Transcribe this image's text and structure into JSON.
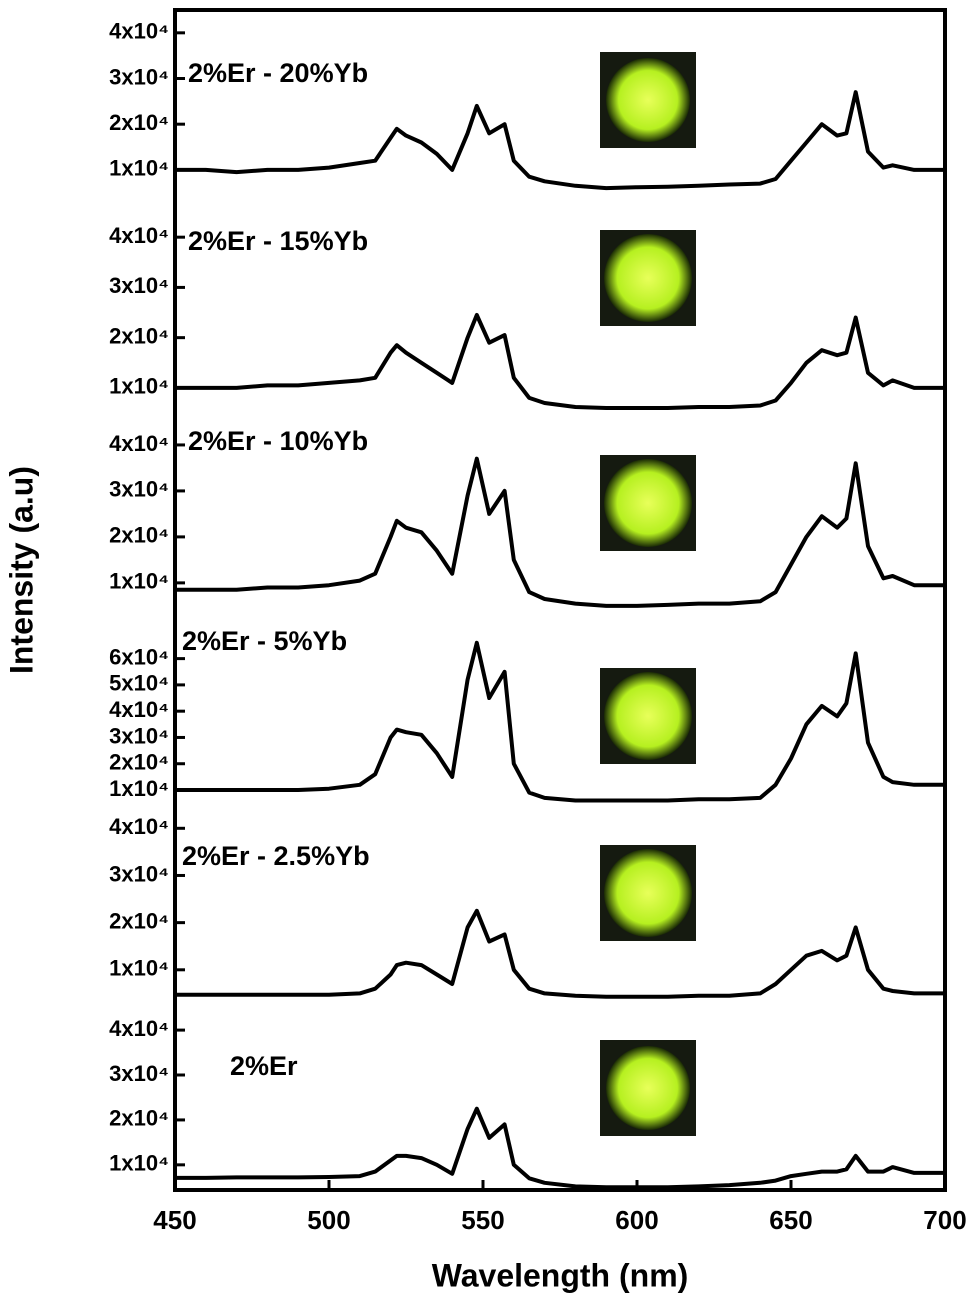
{
  "chart_data": {
    "type": "line",
    "xlabel": "Wavelength (nm)",
    "ylabel": "Intensity (a.u)",
    "color": "#000000",
    "xlim": [
      450,
      700
    ],
    "xticks": [
      450,
      500,
      550,
      600,
      650,
      700
    ],
    "x": [
      450,
      460,
      470,
      480,
      490,
      500,
      510,
      515,
      520,
      522,
      525,
      530,
      535,
      540,
      545,
      548,
      552,
      557,
      560,
      565,
      570,
      580,
      590,
      600,
      610,
      620,
      630,
      640,
      645,
      650,
      655,
      660,
      665,
      668,
      671,
      675,
      680,
      683,
      690,
      700
    ],
    "panels": [
      {
        "label": "2%Er - 20%Yb",
        "ylim": [
          3400,
          45000
        ],
        "yticks": [
          {
            "value": 10000,
            "label": "1x10⁴"
          },
          {
            "value": 20000,
            "label": "2x10⁴"
          },
          {
            "value": 30000,
            "label": "3x10⁴"
          },
          {
            "value": 40000,
            "label": "4x10⁴"
          }
        ],
        "values": [
          10000,
          10000,
          9500,
          10000,
          10000,
          10500,
          11500,
          12000,
          17000,
          19000,
          17500,
          16000,
          13500,
          10000,
          18000,
          24000,
          18000,
          20000,
          12000,
          8500,
          7500,
          6500,
          6000,
          6200,
          6300,
          6500,
          6800,
          7000,
          8000,
          12000,
          16000,
          20000,
          17500,
          18000,
          27000,
          14000,
          10500,
          11000,
          10000,
          10000
        ]
      },
      {
        "label": "2%Er - 15%Yb",
        "ylim": [
          5600,
          47400
        ],
        "yticks": [
          {
            "value": 10000,
            "label": "1x10⁴"
          },
          {
            "value": 20000,
            "label": "2x10⁴"
          },
          {
            "value": 30000,
            "label": "3x10⁴"
          },
          {
            "value": 40000,
            "label": "4x10⁴"
          }
        ],
        "values": [
          10000,
          10000,
          10000,
          10500,
          10500,
          11000,
          11500,
          12000,
          17000,
          18500,
          17000,
          15000,
          13000,
          11000,
          20000,
          24500,
          19000,
          20500,
          12000,
          8000,
          7000,
          6200,
          6000,
          6000,
          6000,
          6200,
          6200,
          6500,
          7500,
          11000,
          15000,
          17500,
          16500,
          17000,
          24000,
          13000,
          10500,
          11500,
          10000,
          10000
        ]
      },
      {
        "label": "2%Er - 10%Yb",
        "ylim": [
          4100,
          47600
        ],
        "yticks": [
          {
            "value": 10000,
            "label": "1x10⁴"
          },
          {
            "value": 20000,
            "label": "2x10⁴"
          },
          {
            "value": 30000,
            "label": "3x10⁴"
          },
          {
            "value": 40000,
            "label": "4x10⁴"
          }
        ],
        "values": [
          8500,
          8500,
          8500,
          9000,
          9000,
          9500,
          10500,
          12000,
          20000,
          23500,
          22000,
          21000,
          17000,
          12000,
          29000,
          37000,
          25000,
          30000,
          15000,
          8000,
          6500,
          5500,
          5000,
          5000,
          5200,
          5500,
          5500,
          6000,
          8000,
          14000,
          20000,
          24500,
          22000,
          24000,
          36000,
          18000,
          11000,
          11500,
          9500,
          9500
        ]
      },
      {
        "label": "2%Er - 5%Yb",
        "ylim": [
          6200,
          78500
        ],
        "yticks": [
          {
            "value": 10000,
            "label": "1x10⁴"
          },
          {
            "value": 20000,
            "label": "2x10⁴"
          },
          {
            "value": 30000,
            "label": "3x10⁴"
          },
          {
            "value": 40000,
            "label": "4x10⁴"
          },
          {
            "value": 50000,
            "label": "5x10⁴"
          },
          {
            "value": 60000,
            "label": "6x10⁴"
          }
        ],
        "values": [
          10000,
          10000,
          10000,
          10000,
          10000,
          10500,
          12000,
          16000,
          30000,
          33000,
          32000,
          31000,
          24000,
          15000,
          52000,
          66000,
          45000,
          55000,
          20000,
          9000,
          7000,
          6000,
          6000,
          6000,
          6000,
          6500,
          6500,
          7000,
          12000,
          22000,
          35000,
          42000,
          38000,
          43000,
          62000,
          28000,
          15000,
          13000,
          12000,
          12000
        ]
      },
      {
        "label": "2%Er - 2.5%Yb",
        "ylim": [
          3600,
          46000
        ],
        "yticks": [
          {
            "value": 10000,
            "label": "1x10⁴"
          },
          {
            "value": 20000,
            "label": "2x10⁴"
          },
          {
            "value": 30000,
            "label": "3x10⁴"
          },
          {
            "value": 40000,
            "label": "4x10⁴"
          }
        ],
        "values": [
          4700,
          4700,
          4700,
          4700,
          4700,
          4700,
          5000,
          6000,
          9000,
          11000,
          11500,
          11000,
          9000,
          7000,
          19000,
          22500,
          16000,
          17500,
          10000,
          6000,
          5000,
          4500,
          4300,
          4300,
          4300,
          4500,
          4500,
          5000,
          7000,
          10000,
          13000,
          14000,
          12000,
          13000,
          19000,
          10000,
          6000,
          5500,
          5000,
          5000
        ]
      },
      {
        "label": "2%Er",
        "ylim": [
          4400,
          46700
        ],
        "yticks": [
          {
            "value": 10000,
            "label": "1x10⁴"
          },
          {
            "value": 20000,
            "label": "2x10⁴"
          },
          {
            "value": 30000,
            "label": "3x10⁴"
          },
          {
            "value": 40000,
            "label": "4x10⁴"
          }
        ],
        "values": [
          7100,
          7100,
          7200,
          7200,
          7200,
          7300,
          7500,
          8500,
          11000,
          12000,
          12000,
          11500,
          10000,
          8000,
          18000,
          22500,
          16000,
          19000,
          10000,
          7000,
          6000,
          5200,
          5000,
          5000,
          5000,
          5200,
          5500,
          6000,
          6500,
          7500,
          8000,
          8500,
          8500,
          9000,
          12000,
          8500,
          8500,
          9500,
          8200,
          8200
        ]
      }
    ]
  }
}
